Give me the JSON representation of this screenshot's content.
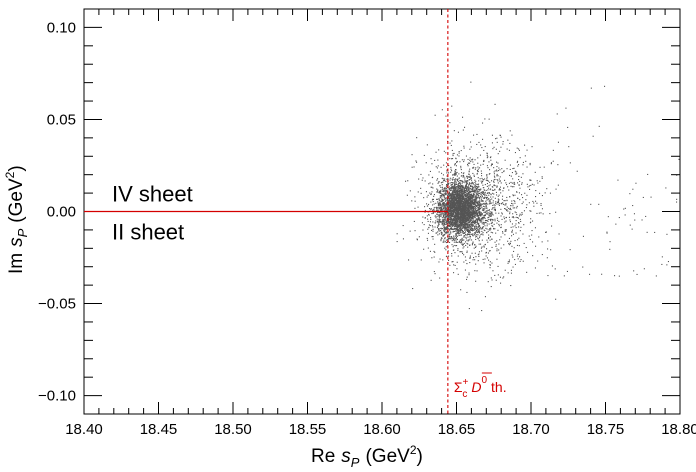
{
  "chart_data": {
    "type": "scatter",
    "title": "",
    "x_axis": {
      "label_prefix": "Re",
      "label_var": "s",
      "label_sub": "P",
      "label_unit": "(GeV",
      "label_unit_sup": "2",
      "label_unit_close": ")",
      "range": [
        18.4,
        18.8
      ],
      "ticks": [
        18.4,
        18.45,
        18.5,
        18.55,
        18.6,
        18.65,
        18.7,
        18.75,
        18.8
      ],
      "tick_labels": [
        "18.40",
        "18.45",
        "18.50",
        "18.55",
        "18.60",
        "18.65",
        "18.70",
        "18.75",
        "18.80"
      ]
    },
    "y_axis": {
      "label_prefix": "Im",
      "label_var": "s",
      "label_sub": "P",
      "label_unit": "(GeV",
      "label_unit_sup": "2",
      "label_unit_close": ")",
      "range": [
        -0.11,
        0.11
      ],
      "ticks": [
        -0.1,
        -0.05,
        0.0,
        0.05,
        0.1
      ],
      "tick_labels": [
        "−0.10",
        "−0.05",
        "0.00",
        "0.05",
        "0.10"
      ]
    },
    "grid": false,
    "threshold": {
      "x": 18.6442,
      "color": "#d40000",
      "style": "dashed",
      "label_sigma": "Σ",
      "label_sigma_sup": "+",
      "label_sigma_sub": "c",
      "label_d": "D",
      "label_d_sup": "0",
      "label_suffix": "th."
    },
    "cut": {
      "y": 0.0,
      "x_from": 18.4,
      "x_to": 18.6442,
      "color": "#d40000"
    },
    "sheet_labels": {
      "upper": "IV sheet",
      "lower": "II sheet"
    },
    "scatter_color": "#555555",
    "cloud": {
      "core_center": [
        18.652,
        0.0015
      ],
      "core_spread": [
        0.0075,
        0.0075
      ],
      "core_count": 3200,
      "halo_center": [
        18.665,
        0.004
      ],
      "halo_spread": [
        0.02,
        0.017
      ],
      "halo_count": 1300,
      "tail_count": 120
    }
  }
}
